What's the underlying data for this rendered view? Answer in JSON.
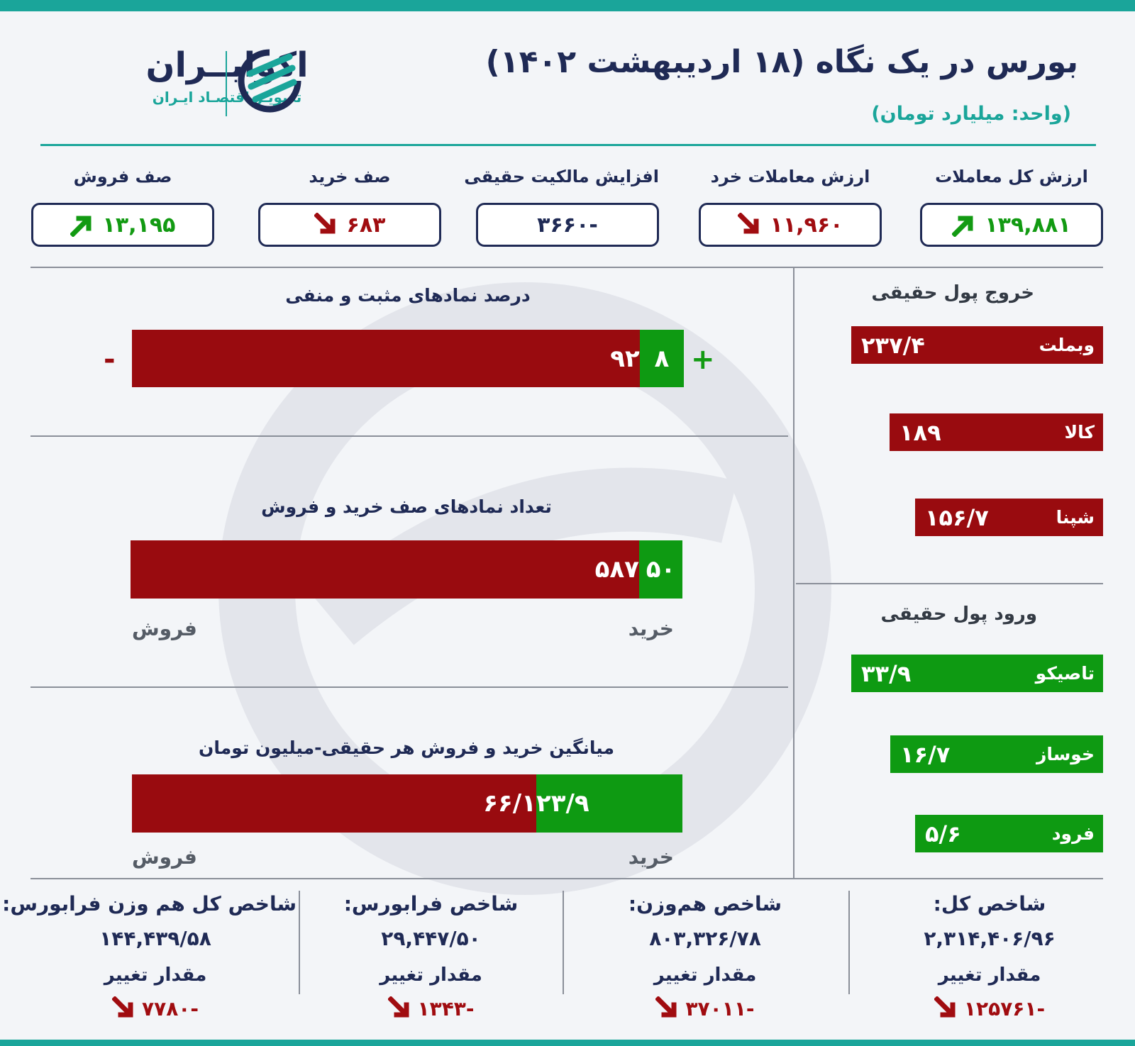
{
  "header": {
    "title": "بورس در یک نگاه (۱۸ اردیبهشت ۱۴۰۲)",
    "unit": "(واحد: میلیارد تومان)"
  },
  "logo": {
    "name": "اکوایــران",
    "tagline": "تصویـر اقتصـاد ایـران"
  },
  "kpis": [
    {
      "label": "ارزش کل معاملات",
      "value": "۱۳۹,۸۸۱",
      "trend": "up"
    },
    {
      "label": "ارزش معاملات خرد",
      "value": "۱۱,۹۶۰",
      "trend": "down"
    },
    {
      "label": "افزایش مالکیت حقیقی",
      "value": "-۳۶۶۰",
      "trend": "none"
    },
    {
      "label": "صف خرید",
      "value": "۶۸۳",
      "trend": "down"
    },
    {
      "label": "صف فروش",
      "value": "۱۳,۱۹۵",
      "trend": "up"
    }
  ],
  "charts": {
    "positive_negative": {
      "title": "درصد نمادهای مثبت و منفی",
      "plus_sign": "+",
      "minus_sign": "-",
      "positive_label": "۸",
      "negative_label": "۹۲"
    },
    "queues": {
      "title": "تعداد نمادهای صف خرید و فروش",
      "buy_label": "۵۰",
      "sell_label": "۵۸۷",
      "buy_axis": "خرید",
      "sell_axis": "فروش"
    },
    "avg_trade": {
      "title": "میانگین خرید و فروش هر حقیقی-میلیون تومان",
      "buy_label": "۲۳/۹",
      "sell_label": "۶۶/۱",
      "buy_axis": "خرید",
      "sell_axis": "فروش"
    }
  },
  "chart_data": [
    {
      "type": "bar",
      "title": "درصد نمادهای مثبت و منفی",
      "categories": [
        "+",
        "-"
      ],
      "values": [
        8,
        92
      ]
    },
    {
      "type": "bar",
      "title": "تعداد نمادهای صف خرید و فروش",
      "categories": [
        "خرید",
        "فروش"
      ],
      "values": [
        50,
        587
      ]
    },
    {
      "type": "bar",
      "title": "میانگین خرید و فروش هر حقیقی-میلیون تومان",
      "categories": [
        "خرید",
        "فروش"
      ],
      "values": [
        23.9,
        66.1
      ]
    },
    {
      "type": "bar",
      "title": "خروج پول حقیقی",
      "categories": [
        "وبملت",
        "کالا",
        "شپنا"
      ],
      "values": [
        237.4,
        189,
        156.7
      ]
    },
    {
      "type": "bar",
      "title": "ورود پول حقیقی",
      "categories": [
        "تاصیکو",
        "خوساز",
        "فرود"
      ],
      "values": [
        33.9,
        16.7,
        5.6
      ]
    }
  ],
  "outflow": {
    "title": "خروج پول حقیقی",
    "items": [
      {
        "name": "وبملت",
        "value": "۲۳۷/۴",
        "num": 237.4
      },
      {
        "name": "کالا",
        "value": "۱۸۹",
        "num": 189
      },
      {
        "name": "شپنا",
        "value": "۱۵۶/۷",
        "num": 156.7
      }
    ]
  },
  "inflow": {
    "title": "ورود پول حقیقی",
    "items": [
      {
        "name": "تاصیکو",
        "value": "۳۳/۹",
        "num": 33.9
      },
      {
        "name": "خوساز",
        "value": "۱۶/۷",
        "num": 16.7
      },
      {
        "name": "فرود",
        "value": "۵/۶",
        "num": 5.6
      }
    ]
  },
  "indices": [
    {
      "name": "شاخص کل:",
      "value": "۲,۳۱۴,۴۰۶/۹۶",
      "change_label": "مقدار تغییر",
      "change": "-۱۲۵۷۶۱"
    },
    {
      "name": "شاخص هم‌وزن:",
      "value": "۸۰۳,۳۲۶/۷۸",
      "change_label": "مقدار تغییر",
      "change": "-۳۷۰۱۱"
    },
    {
      "name": "شاخص فرابورس:",
      "value": "۲۹,۴۴۷/۵۰",
      "change_label": "مقدار تغییر",
      "change": "-۱۳۴۳"
    },
    {
      "name": "شاخص کل هم وزن فرابورس:",
      "value": "۱۴۴,۴۳۹/۵۸",
      "change_label": "مقدار تغییر",
      "change": "-۷۷۸۰"
    }
  ],
  "colors": {
    "accent": "#1aa59a",
    "navy": "#1f2a55",
    "green": "#0e9a12",
    "red": "#990b0f"
  }
}
